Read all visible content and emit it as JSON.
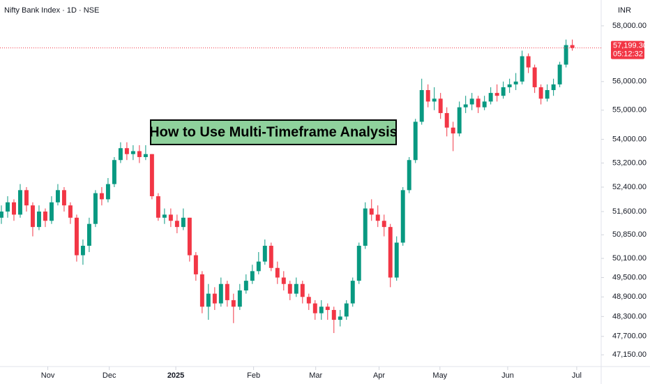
{
  "chart_data": {
    "type": "candlestick",
    "title": "Nifty Bank Index · 1D · NSE",
    "currency": "INR",
    "annotation": "How to Use Multi-Timeframe Analysis",
    "log_scale": true,
    "up_color": "#089981",
    "down_color": "#f23645",
    "ylim": [
      46700,
      58950
    ],
    "yticks": [
      {
        "value": 58000,
        "label": "58,000.00"
      },
      {
        "value": 56000,
        "label": "56,000.00"
      },
      {
        "value": 55000,
        "label": "55,000.00"
      },
      {
        "value": 54000,
        "label": "54,000.00"
      },
      {
        "value": 53200,
        "label": "53,200.00"
      },
      {
        "value": 52400,
        "label": "52,400.00"
      },
      {
        "value": 51600,
        "label": "51,600.00"
      },
      {
        "value": 50850,
        "label": "50,850.00"
      },
      {
        "value": 50100,
        "label": "50,100.00"
      },
      {
        "value": 49500,
        "label": "49,500.00"
      },
      {
        "value": 48900,
        "label": "48,900.00"
      },
      {
        "value": 48300,
        "label": "48,300.00"
      },
      {
        "value": 47700,
        "label": "47,700.00"
      },
      {
        "value": 47150,
        "label": "47,150.00"
      }
    ],
    "xlim": [
      -0.22,
      95.6
    ],
    "xticks": [
      {
        "value": 7.4,
        "label": "Nov"
      },
      {
        "value": 17.2,
        "label": "Dec"
      },
      {
        "value": 27.8,
        "label": "2025"
      },
      {
        "value": 40.2,
        "label": "Feb"
      },
      {
        "value": 50.1,
        "label": "Mar"
      },
      {
        "value": 60.2,
        "label": "Apr"
      },
      {
        "value": 69.9,
        "label": "May"
      },
      {
        "value": 80.7,
        "label": "Jun"
      },
      {
        "value": 91.7,
        "label": "Jul"
      }
    ],
    "current_price": {
      "value": 57199.3,
      "label": "57,199.30"
    },
    "countdown": "05:12:32",
    "candles": [
      [
        51400,
        51800,
        51200,
        51600
      ],
      [
        51600,
        52100,
        51400,
        51900
      ],
      [
        51900,
        52000,
        51300,
        51500
      ],
      [
        51500,
        52500,
        51400,
        52300
      ],
      [
        52300,
        52400,
        51600,
        51800
      ],
      [
        51800,
        51900,
        50800,
        51100
      ],
      [
        51100,
        51800,
        51000,
        51600
      ],
      [
        51600,
        51700,
        51100,
        51300
      ],
      [
        51300,
        52100,
        51200,
        51900
      ],
      [
        51900,
        52500,
        51800,
        52300
      ],
      [
        52300,
        52400,
        51600,
        51800
      ],
      [
        51800,
        51900,
        51200,
        51400
      ],
      [
        51400,
        51500,
        50000,
        50200
      ],
      [
        50200,
        50700,
        49900,
        50500
      ],
      [
        50500,
        51400,
        50300,
        51200
      ],
      [
        51200,
        52300,
        51100,
        52200
      ],
      [
        52200,
        52400,
        51800,
        52000
      ],
      [
        52000,
        52700,
        51900,
        52500
      ],
      [
        52500,
        53400,
        52400,
        53300
      ],
      [
        53300,
        53900,
        53200,
        53700
      ],
      [
        53700,
        53900,
        53300,
        53500
      ],
      [
        53500,
        53800,
        53300,
        53600
      ],
      [
        53600,
        53800,
        53200,
        53400
      ],
      [
        53400,
        53800,
        53300,
        53500
      ],
      [
        53500,
        53500,
        52000,
        52100
      ],
      [
        52100,
        52200,
        51300,
        51400
      ],
      [
        51400,
        51700,
        51200,
        51500
      ],
      [
        51500,
        51700,
        51100,
        51300
      ],
      [
        51300,
        51500,
        50900,
        51100
      ],
      [
        51100,
        51700,
        51000,
        51400
      ],
      [
        51400,
        51400,
        50000,
        50200
      ],
      [
        50200,
        50300,
        49400,
        49600
      ],
      [
        49600,
        49700,
        48400,
        48600
      ],
      [
        48600,
        49300,
        48200,
        49000
      ],
      [
        49000,
        49200,
        48500,
        48700
      ],
      [
        48700,
        49500,
        48600,
        49300
      ],
      [
        49300,
        49400,
        48600,
        48800
      ],
      [
        48800,
        49000,
        48100,
        48600
      ],
      [
        48600,
        49300,
        48500,
        49100
      ],
      [
        49100,
        49600,
        49000,
        49400
      ],
      [
        49400,
        49900,
        49300,
        49700
      ],
      [
        49700,
        50300,
        49600,
        50000
      ],
      [
        50000,
        50700,
        49900,
        50500
      ],
      [
        50500,
        50600,
        49700,
        49800
      ],
      [
        49800,
        50000,
        49300,
        49500
      ],
      [
        49500,
        49700,
        49100,
        49300
      ],
      [
        49300,
        49400,
        48800,
        49000
      ],
      [
        49000,
        49500,
        48900,
        49300
      ],
      [
        49300,
        49400,
        48700,
        48900
      ],
      [
        48900,
        49000,
        48500,
        48700
      ],
      [
        48700,
        48800,
        48200,
        48400
      ],
      [
        48400,
        48800,
        48200,
        48600
      ],
      [
        48600,
        48700,
        48200,
        48500
      ],
      [
        48500,
        48600,
        47800,
        48200
      ],
      [
        48200,
        48500,
        48000,
        48300
      ],
      [
        48300,
        48800,
        48200,
        48700
      ],
      [
        48700,
        49500,
        48600,
        49400
      ],
      [
        49400,
        50600,
        49300,
        50500
      ],
      [
        50500,
        51900,
        50400,
        51700
      ],
      [
        51700,
        52000,
        51300,
        51500
      ],
      [
        51500,
        51800,
        51100,
        51300
      ],
      [
        51300,
        51500,
        50800,
        51100
      ],
      [
        51100,
        51200,
        49200,
        49500
      ],
      [
        49500,
        50800,
        49400,
        50600
      ],
      [
        50600,
        52400,
        50500,
        52300
      ],
      [
        52300,
        53400,
        52200,
        53300
      ],
      [
        53300,
        54700,
        53200,
        54600
      ],
      [
        54600,
        56100,
        54500,
        55700
      ],
      [
        55700,
        55900,
        55100,
        55300
      ],
      [
        55300,
        55800,
        55000,
        55400
      ],
      [
        55400,
        55600,
        54700,
        54900
      ],
      [
        54900,
        55100,
        54100,
        54400
      ],
      [
        54400,
        54600,
        53600,
        54200
      ],
      [
        54200,
        55300,
        54100,
        55100
      ],
      [
        55100,
        55500,
        54900,
        55200
      ],
      [
        55200,
        55600,
        55000,
        55400
      ],
      [
        55400,
        55500,
        54900,
        55100
      ],
      [
        55100,
        55500,
        55000,
        55300
      ],
      [
        55300,
        55800,
        55200,
        55600
      ],
      [
        55600,
        55900,
        55300,
        55500
      ],
      [
        55500,
        56000,
        55400,
        55800
      ],
      [
        55800,
        56100,
        55600,
        55900
      ],
      [
        55900,
        56300,
        55700,
        56000
      ],
      [
        56000,
        57100,
        55900,
        56900
      ],
      [
        56900,
        57000,
        56300,
        56500
      ],
      [
        56500,
        56600,
        55600,
        55800
      ],
      [
        55800,
        55900,
        55200,
        55400
      ],
      [
        55400,
        55900,
        55300,
        55700
      ],
      [
        55700,
        56100,
        55500,
        55900
      ],
      [
        55900,
        56700,
        55800,
        56600
      ],
      [
        56600,
        57500,
        56500,
        57300
      ],
      [
        57300,
        57500,
        57100,
        57199.3
      ]
    ]
  }
}
